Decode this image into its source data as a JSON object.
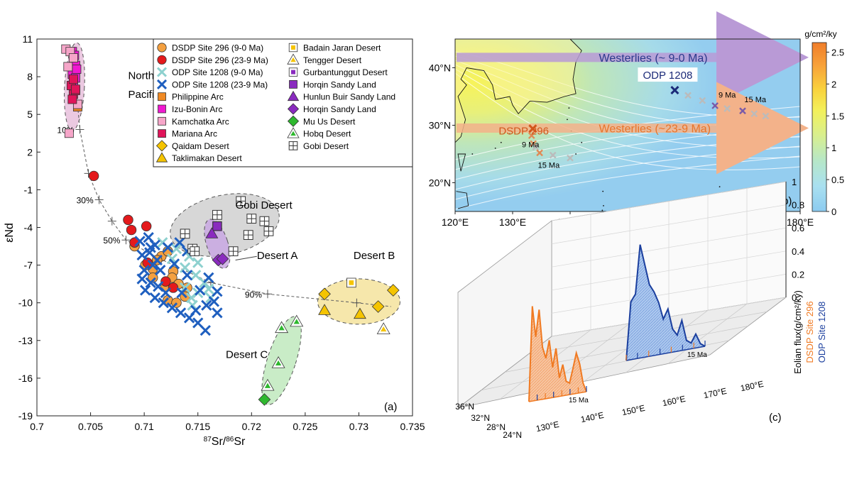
{
  "chart_data": [
    {
      "type": "scatter",
      "panel_label": "(a)",
      "xlabel": "87Sr/86Sr",
      "xlabel_sup1": "87",
      "xlabel_base1": "Sr/",
      "xlabel_sup2": "86",
      "xlabel_base2": "Sr",
      "ylabel": "εNd",
      "xlim": [
        0.7,
        0.735
      ],
      "ylim": [
        -19,
        11
      ],
      "x_ticks": [
        "0.7",
        "0.705",
        "0.71",
        "0.715",
        "0.72",
        "0.725",
        "0.73",
        "0.735"
      ],
      "x_tick_values": [
        0.7,
        0.705,
        0.71,
        0.715,
        0.72,
        0.725,
        0.73,
        0.735
      ],
      "y_ticks": [
        "11",
        "8",
        "5",
        "2",
        "-1",
        "-4",
        "-7",
        "-10",
        "-13",
        "-16",
        "-19"
      ],
      "y_tick_values": [
        11,
        8,
        5,
        2,
        -1,
        -4,
        -7,
        -10,
        -13,
        -16,
        -19
      ],
      "legend": [
        {
          "label": "DSDP Site 296 (9-0 Ma)",
          "marker": "circle",
          "color": "#f4a040"
        },
        {
          "label": "DSDP Site 296 (23-9 Ma)",
          "marker": "circle",
          "color": "#e41a1c"
        },
        {
          "label": "ODP Site 1208 (9-0 Ma)",
          "marker": "x",
          "color": "#8ed1cf"
        },
        {
          "label": "ODP Site 1208 (23-9 Ma)",
          "marker": "x",
          "color": "#1f5fbf"
        },
        {
          "label": "Philippine Arc",
          "marker": "square",
          "color": "#f08a24"
        },
        {
          "label": "Izu-Bonin Arc",
          "marker": "square",
          "color": "#f018d0"
        },
        {
          "label": "Kamchatka Arc",
          "marker": "square",
          "color": "#f6a6c9"
        },
        {
          "label": "Mariana Arc",
          "marker": "square",
          "color": "#e0145a"
        },
        {
          "label": "Qaidam Desert",
          "marker": "diamond",
          "color": "#f5c400"
        },
        {
          "label": "Taklimakan Desert",
          "marker": "triangle",
          "color": "#f5c400"
        },
        {
          "label": "Badain Jaran Desert",
          "marker": "square-hollow",
          "color": "#f5c400"
        },
        {
          "label": "Tengger Desert",
          "marker": "triangle-hollow",
          "color": "#f5c400"
        },
        {
          "label": "Gurbantunggut Desert",
          "marker": "square-hollow",
          "color": "#8a2bbf"
        },
        {
          "label": "Horqin Sandy Land",
          "marker": "square",
          "color": "#8a2bbf"
        },
        {
          "label": "Hunlun Buir Sandy Land",
          "marker": "triangle",
          "color": "#8a2bbf"
        },
        {
          "label": "Horqin Sandy Land",
          "marker": "diamond",
          "color": "#8a2bbf"
        },
        {
          "label": "Mu Us Desert",
          "marker": "diamond",
          "color": "#2eb82e"
        },
        {
          "label": "Hobq Desert",
          "marker": "triangle-hollow",
          "color": "#2eb82e"
        },
        {
          "label": "Gobi Desert",
          "marker": "square-cross",
          "color": "#444444"
        }
      ],
      "region_labels": [
        {
          "text": "Northwest",
          "x": 0.7085,
          "y": 7.8
        },
        {
          "text": "Pacific Arc",
          "x": 0.7085,
          "y": 6.3
        },
        {
          "text": "Gobi Desert",
          "x": 0.7185,
          "y": -2.5
        },
        {
          "text": "Desert A",
          "x": 0.7205,
          "y": -6.5
        },
        {
          "text": "Desert B",
          "x": 0.7295,
          "y": -6.5
        },
        {
          "text": "Desert C",
          "x": 0.7176,
          "y": -14.4
        }
      ],
      "mixing_line": [
        {
          "x": 0.7035,
          "y": 8.5
        },
        {
          "x": 0.704,
          "y": 3.8
        },
        {
          "x": 0.7048,
          "y": 0.3
        },
        {
          "x": 0.7058,
          "y": -1.8
        },
        {
          "x": 0.707,
          "y": -3.5
        },
        {
          "x": 0.7083,
          "y": -5.0
        },
        {
          "x": 0.711,
          "y": -6.3
        },
        {
          "x": 0.7162,
          "y": -8.4
        },
        {
          "x": 0.7215,
          "y": -9.3
        },
        {
          "x": 0.7298,
          "y": -10.0
        },
        {
          "x": 0.733,
          "y": -10.3
        }
      ],
      "mixing_ticks": [
        {
          "x": 0.704,
          "y": 3.8,
          "label": "10%"
        },
        {
          "x": 0.7048,
          "y": 0.3,
          "label": ""
        },
        {
          "x": 0.7058,
          "y": -1.8,
          "label": "30%"
        },
        {
          "x": 0.707,
          "y": -3.5,
          "label": ""
        },
        {
          "x": 0.7083,
          "y": -5.0,
          "label": "50%"
        },
        {
          "x": 0.7162,
          "y": -8.4,
          "label": ""
        },
        {
          "x": 0.7215,
          "y": -9.3,
          "label": "90%"
        },
        {
          "x": 0.7298,
          "y": -10.0,
          "label": ""
        }
      ],
      "series": [
        {
          "name": "Philippine Arc",
          "points": [
            [
              0.7038,
              5.6
            ]
          ]
        },
        {
          "name": "Izu-Bonin Arc",
          "points": [
            [
              0.7033,
              10.0
            ],
            [
              0.7034,
              9.4
            ],
            [
              0.7036,
              8.9
            ],
            [
              0.7033,
              8.2
            ],
            [
              0.7036,
              7.9
            ],
            [
              0.7034,
              7.6
            ],
            [
              0.7035,
              9.7
            ],
            [
              0.7037,
              8.6
            ]
          ]
        },
        {
          "name": "Kamchatka Arc",
          "points": [
            [
              0.7027,
              10.2
            ],
            [
              0.7031,
              10.0
            ],
            [
              0.7034,
              9.5
            ],
            [
              0.703,
              3.5
            ],
            [
              0.7038,
              5.8
            ],
            [
              0.7029,
              8.8
            ]
          ]
        },
        {
          "name": "Mariana Arc",
          "points": [
            [
              0.7032,
              7.3
            ],
            [
              0.7034,
              6.6
            ],
            [
              0.7036,
              6.9
            ],
            [
              0.7033,
              6.2
            ],
            [
              0.7036,
              7.0
            ],
            [
              0.7034,
              7.8
            ]
          ]
        },
        {
          "name": "DSDP Site 296 (9-0 Ma)",
          "points": [
            [
              0.7091,
              -5.5
            ],
            [
              0.7116,
              -6.3
            ],
            [
              0.7122,
              -5.9
            ],
            [
              0.7101,
              -7.0
            ],
            [
              0.7108,
              -7.3
            ],
            [
              0.7127,
              -7.5
            ],
            [
              0.7108,
              -8.0
            ],
            [
              0.712,
              -8.7
            ],
            [
              0.7126,
              -8.0
            ],
            [
              0.7132,
              -8.5
            ],
            [
              0.714,
              -8.8
            ],
            [
              0.7138,
              -9.5
            ],
            [
              0.7122,
              -9.8
            ],
            [
              0.713,
              -10.0
            ],
            [
              0.7112,
              -6.6
            ]
          ]
        },
        {
          "name": "DSDP Site 296 (23-9 Ma)",
          "points": [
            [
              0.7053,
              0.1
            ],
            [
              0.7085,
              -3.4
            ],
            [
              0.7088,
              -4.2
            ],
            [
              0.7102,
              -3.9
            ],
            [
              0.7103,
              -6.8
            ],
            [
              0.712,
              -8.3
            ],
            [
              0.7127,
              -8.8
            ],
            [
              0.7091,
              -5.2
            ]
          ]
        },
        {
          "name": "ODP Site 1208 (9-0 Ma)",
          "points": [
            [
              0.7117,
              -5.2
            ],
            [
              0.713,
              -5.7
            ],
            [
              0.7142,
              -6.3
            ],
            [
              0.715,
              -6.8
            ],
            [
              0.7138,
              -7.2
            ],
            [
              0.7148,
              -7.8
            ],
            [
              0.7156,
              -8.4
            ],
            [
              0.716,
              -8.9
            ],
            [
              0.715,
              -9.2
            ],
            [
              0.7144,
              -9.6
            ],
            [
              0.7138,
              -8.8
            ],
            [
              0.7162,
              -9.6
            ],
            [
              0.7145,
              -10.2
            ],
            [
              0.7126,
              -6.5
            ]
          ]
        },
        {
          "name": "ODP Site 1208 (23-9 Ma)",
          "points": [
            [
              0.7096,
              -5.1
            ],
            [
              0.7104,
              -4.8
            ],
            [
              0.711,
              -5.4
            ],
            [
              0.7098,
              -6.2
            ],
            [
              0.7105,
              -6.0
            ],
            [
              0.7112,
              -6.6
            ],
            [
              0.71,
              -7.4
            ],
            [
              0.7108,
              -7.0
            ],
            [
              0.7115,
              -7.4
            ],
            [
              0.7098,
              -8.1
            ],
            [
              0.7106,
              -8.4
            ],
            [
              0.7113,
              -8.7
            ],
            [
              0.712,
              -9.2
            ],
            [
              0.7101,
              -9.0
            ],
            [
              0.711,
              -9.6
            ],
            [
              0.7118,
              -10.0
            ],
            [
              0.7126,
              -10.4
            ],
            [
              0.7134,
              -10.8
            ],
            [
              0.7142,
              -11.2
            ],
            [
              0.715,
              -11.6
            ],
            [
              0.7157,
              -12.2
            ],
            [
              0.7106,
              -5.6
            ],
            [
              0.7122,
              -5.6
            ],
            [
              0.7133,
              -5.2
            ],
            [
              0.714,
              -5.9
            ],
            [
              0.7128,
              -6.9
            ],
            [
              0.7135,
              -9.2
            ],
            [
              0.7148,
              -10.6
            ],
            [
              0.7158,
              -10.2
            ],
            [
              0.7165,
              -9.9
            ],
            [
              0.7168,
              -10.8
            ],
            [
              0.7152,
              -9.0
            ],
            [
              0.716,
              -8.0
            ],
            [
              0.7168,
              -9.1
            ],
            [
              0.714,
              -7.8
            ]
          ]
        },
        {
          "name": "Qaidam Desert",
          "points": [
            [
              0.7268,
              -9.3
            ],
            [
              0.7318,
              -10.3
            ],
            [
              0.7332,
              -9.0
            ]
          ]
        },
        {
          "name": "Taklimakan Desert",
          "points": [
            [
              0.7268,
              -10.6
            ],
            [
              0.7301,
              -10.9
            ]
          ]
        },
        {
          "name": "Badain Jaran Desert",
          "points": [
            [
              0.7293,
              -8.4
            ]
          ]
        },
        {
          "name": "Tengger Desert",
          "points": [
            [
              0.7323,
              -12.1
            ]
          ]
        },
        {
          "name": "Gurbantunggut Desert",
          "points": [
            [
              0.7168,
              -3.9
            ]
          ]
        },
        {
          "name": "Horqin Sandy Land",
          "points": [
            [
              0.7168,
              -3.9
            ]
          ]
        },
        {
          "name": "Hunlun Buir Sandy Land",
          "points": [
            [
              0.7163,
              -4.5
            ]
          ]
        },
        {
          "name": "Horqin Sandy Land",
          "points": [
            [
              0.7169,
              -6.6
            ],
            [
              0.7173,
              -6.5
            ]
          ]
        },
        {
          "name": "Mu Us Desert",
          "points": [
            [
              0.7212,
              -17.7
            ]
          ]
        },
        {
          "name": "Hobq Desert",
          "points": [
            [
              0.7242,
              -11.5
            ],
            [
              0.7228,
              -12.0
            ],
            [
              0.7225,
              -14.8
            ],
            [
              0.7215,
              -16.6
            ]
          ]
        },
        {
          "name": "Gobi Desert",
          "points": [
            [
              0.72,
              -3.3
            ],
            [
              0.7212,
              -3.5
            ],
            [
              0.7138,
              -4.5
            ],
            [
              0.7145,
              -5.7
            ],
            [
              0.7147,
              -5.9
            ],
            [
              0.7183,
              -5.9
            ],
            [
              0.7168,
              -3.0
            ],
            [
              0.719,
              -1.9
            ],
            [
              0.7216,
              -4.3
            ],
            [
              0.7197,
              -4.6
            ]
          ]
        }
      ]
    },
    {
      "type": "map",
      "panel_label": "(b)",
      "xlim": [
        120,
        180
      ],
      "ylim": [
        15,
        45
      ],
      "x_ticks": [
        "120°E",
        "130°E",
        "140°E",
        "150°E",
        "160°E",
        "170°E",
        "180°E"
      ],
      "x_tick_values": [
        120,
        130,
        140,
        150,
        160,
        170,
        180
      ],
      "y_ticks": [
        "40°N",
        "30°N",
        "20°N"
      ],
      "y_tick_values": [
        40,
        30,
        20
      ],
      "colorbar_title": "g/cm²/ky",
      "colorbar_ticks": [
        "2.5",
        "2",
        "1.5",
        "1",
        "0.5",
        "0"
      ],
      "colorbar_tick_values": [
        2.5,
        2,
        1.5,
        1,
        0.5,
        0
      ],
      "colorbar_max": 2.65,
      "arrows": [
        {
          "label": "Westerlies (~ 9-0 Ma)",
          "lat": 41.8,
          "color": "#b99ad6"
        },
        {
          "label": "Westerlies (~23-9 Ma)",
          "lat": 29.5,
          "color": "#f3b28a"
        }
      ],
      "sites": [
        {
          "label": "ODP 1208",
          "lon": 158.2,
          "lat": 36.1,
          "color": "#1b2a78"
        },
        {
          "label": "DSDP 296",
          "lon": 133.5,
          "lat": 29.4,
          "color": "#d2571b"
        }
      ],
      "paleo_track_1208": [
        [
          160.5,
          35.2
        ],
        [
          163,
          34.3
        ],
        [
          165.2,
          33.4
        ],
        [
          167.3,
          32.9
        ],
        [
          170,
          32.5
        ],
        [
          172,
          32.0
        ],
        [
          174,
          31.6
        ]
      ],
      "paleo_labels_1208": [
        {
          "text": "9 Ma",
          "lon": 165.8,
          "lat": 34.8
        },
        {
          "text": "15 Ma",
          "lon": 170.3,
          "lat": 34.0
        }
      ],
      "paleo_track_296": [
        [
          133.3,
          28.2
        ],
        [
          133.6,
          26.8
        ],
        [
          134,
          26.2
        ],
        [
          134.7,
          25.2
        ],
        [
          137,
          24.8
        ],
        [
          140,
          24.3
        ]
      ],
      "paleo_labels_296": [
        {
          "text": "9 Ma",
          "lon": 131.6,
          "lat": 26.2
        },
        {
          "text": "15 Ma",
          "lon": 134.4,
          "lat": 22.6
        }
      ]
    },
    {
      "type": "3d-area",
      "panel_label": "(c)",
      "zlabel_line1": "Eolian flux(g/cm²/ky)",
      "zlabel_line2": "DSDP Site 296",
      "zlabel_line3": "ODP Site 1208",
      "z_ticks": [
        "1",
        "0.8",
        "0.6",
        "0.4",
        "0.2",
        "0"
      ],
      "z_tick_values": [
        1,
        0.8,
        0.6,
        0.4,
        0.2,
        0
      ],
      "lon_ticks": [
        "130°E",
        "140°E",
        "150°E",
        "160°E",
        "170°E",
        "180°E"
      ],
      "lat_ticks": [
        "36°N",
        "32°N",
        "28°N",
        "24°N"
      ],
      "series": [
        {
          "name": "DSDP Site 296",
          "color": "#f07a22",
          "age_label": "15 Ma",
          "values": [
            0,
            0.82,
            0.55,
            0.78,
            0.45,
            0.35,
            0.5,
            0.26,
            0.42,
            0.16,
            0.27,
            0.12,
            0.1,
            0.22,
            0.35,
            0.25,
            0.08,
            0
          ]
        },
        {
          "name": "ODP Site 1208",
          "color": "#1b3f9e",
          "age_label": "15 Ma",
          "values": [
            0,
            0.5,
            0.56,
            0.98,
            0.8,
            0.62,
            0.55,
            0.45,
            0.3,
            0.38,
            0.2,
            0.14,
            0.26,
            0.08,
            0.05,
            0.12,
            0.03,
            0
          ]
        }
      ]
    }
  ]
}
